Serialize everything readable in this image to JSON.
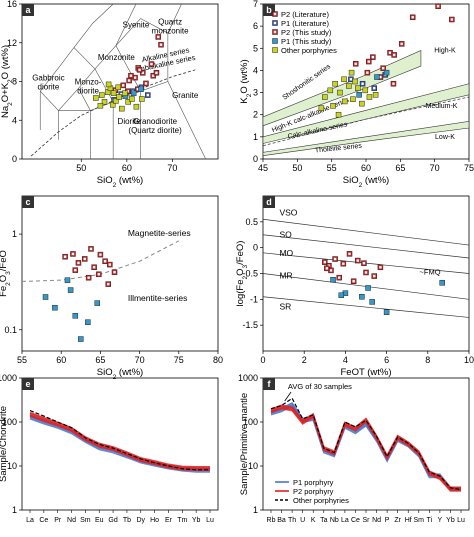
{
  "chart_data": [
    {
      "panel": "a",
      "type": "scatter",
      "xlabel": "SiO2 (wt%)",
      "ylabel": "Na2O+K2O (wt%)",
      "xlim": [
        37,
        80
      ],
      "ylim": [
        0,
        16
      ],
      "xticks": [
        "50",
        "60",
        "70"
      ],
      "yticks": [
        "0",
        "4",
        "8",
        "12",
        "16"
      ],
      "field_labels": [
        "Syenite",
        "Quartz monzonite",
        "Alkaline series",
        "Subalkaline series",
        "Monzonite",
        "Gabbroic diorite",
        "Monzo- diorite",
        "Granite",
        "Diorite",
        "Granodiorite (Quartz diorite)"
      ],
      "series": [
        {
          "name": "P2 (Literature)",
          "color": "#cc2222",
          "x": [
            57.5,
            59.2,
            60.5,
            61.8,
            62.4,
            63.5,
            64.2,
            65.8,
            66.9,
            67.5,
            62.5,
            60.2
          ],
          "y": [
            7.1,
            7.6,
            8.1,
            8.4,
            7.2,
            8.9,
            7.8,
            8.6,
            12.6,
            11.8,
            9.4,
            7.0
          ]
        },
        {
          "name": "P1 (Literature)",
          "color": "#3355bb",
          "x": [
            57.2,
            58.8,
            61.3,
            63.2,
            64.6
          ],
          "y": [
            6.1,
            6.7,
            7.0,
            7.4,
            6.6
          ]
        },
        {
          "name": "P2 (This study)",
          "color": "#cc2222",
          "x": [
            60.9,
            62.8,
            65.4,
            66.5
          ],
          "y": [
            8.6,
            9.2,
            9.8,
            8.9
          ]
        },
        {
          "name": "P1 (This study)",
          "color": "#3399cc",
          "x": [
            59.7,
            61.5,
            63.1
          ],
          "y": [
            6.5,
            6.8,
            7.2
          ]
        },
        {
          "name": "Other porphyries",
          "color": "#c8d420",
          "x": [
            53.2,
            54.5,
            55.8,
            56.4,
            56.9,
            57.6,
            58.3,
            58.9,
            59.6,
            60.3,
            55.1,
            57.1,
            58.1,
            61.1,
            56.0,
            54.2,
            62.1,
            63.3
          ],
          "y": [
            6.3,
            6.6,
            6.9,
            7.3,
            5.6,
            6.0,
            6.4,
            5.2,
            6.8,
            5.9,
            5.9,
            6.8,
            7.4,
            6.2,
            7.7,
            5.5,
            5.4,
            6.2
          ]
        }
      ]
    },
    {
      "panel": "b",
      "type": "scatter",
      "xlabel": "SiO2 (wt%)",
      "ylabel": "K2O (wt%)",
      "xlim": [
        45,
        75
      ],
      "ylim": [
        0,
        7
      ],
      "xticks": [
        "45",
        "50",
        "55",
        "60",
        "65",
        "70",
        "75"
      ],
      "yticks": [
        "0",
        "1",
        "2",
        "3",
        "4",
        "5",
        "6",
        "7"
      ],
      "series_labels": [
        "Shoshonitic series",
        "High-K calc-alkaline series",
        "Calc-alkaline series",
        "Tholeiite series",
        "High-K",
        "Medium-K",
        "Low-K"
      ],
      "legend": [
        "P2 (Literature)",
        "P1 (Literature)",
        "P2 (This study)",
        "P1 (This study)",
        "Other porphyries"
      ],
      "series": [
        {
          "name": "P2 (Literature)",
          "color": "#cc2222",
          "x": [
            58.5,
            60.2,
            61.0,
            62.1,
            63.5,
            64.0,
            65.2,
            66.8,
            70.5,
            72.5
          ],
          "y": [
            4.3,
            3.9,
            4.6,
            3.7,
            4.8,
            3.4,
            5.2,
            6.4,
            6.9,
            6.3
          ]
        },
        {
          "name": "P1 (Literature)",
          "color": "#3355bb",
          "x": [
            57.8,
            59.5,
            61.2,
            62.8
          ],
          "y": [
            3.6,
            3.4,
            3.2,
            3.8
          ]
        },
        {
          "name": "P2 (This study)",
          "color": "#cc2222",
          "x": [
            60.4,
            62.5,
            64.1
          ],
          "y": [
            4.4,
            4.1,
            4.7
          ]
        },
        {
          "name": "P1 (This study)",
          "color": "#3399cc",
          "x": [
            61.6,
            63.0,
            59.0
          ],
          "y": [
            3.7,
            3.9,
            2.9
          ]
        },
        {
          "name": "Other porphyries",
          "color": "#c8d420",
          "x": [
            54.0,
            54.8,
            55.5,
            56.2,
            56.9,
            57.5,
            58.1,
            58.8,
            59.4,
            55.2,
            56.8,
            57.9,
            59.9,
            60.5,
            53.5,
            56.0,
            58.4,
            61.4
          ],
          "y": [
            2.8,
            3.1,
            3.4,
            3.0,
            2.6,
            3.3,
            2.7,
            3.2,
            2.5,
            2.4,
            3.6,
            3.9,
            3.1,
            2.8,
            2.3,
            2.0,
            3.5,
            2.9
          ]
        }
      ]
    },
    {
      "panel": "c",
      "type": "scatter",
      "xlabel": "SiO2 (wt%)",
      "ylabel": "Fe2O3/FeO",
      "xlim": [
        55,
        80
      ],
      "ylim": [
        0.06,
        2.5
      ],
      "yscale": "log",
      "xticks": [
        "55",
        "60",
        "65",
        "70",
        "75",
        "80"
      ],
      "yticks": [
        "0.1",
        "1"
      ],
      "field_labels": [
        "Magnetite-series",
        "Illmentite-series"
      ],
      "series": [
        {
          "name": "P2 (This study)",
          "color": "#cc2222",
          "x": [
            60.5,
            61.5,
            62.2,
            63.0,
            63.8,
            64.2,
            65.0,
            65.6,
            66.2,
            66.8,
            61.8,
            63.5,
            64.8,
            66.0
          ],
          "y": [
            0.58,
            0.62,
            0.5,
            0.55,
            0.7,
            0.45,
            0.61,
            0.52,
            0.48,
            0.4,
            0.42,
            0.35,
            0.38,
            0.3
          ]
        },
        {
          "name": "P1 (This study)",
          "color": "#3399cc",
          "x": [
            58.0,
            59.2,
            60.8,
            61.8,
            62.5,
            63.4,
            64.6,
            61.2
          ],
          "y": [
            0.22,
            0.17,
            0.33,
            0.14,
            0.08,
            0.12,
            0.19,
            0.26
          ]
        }
      ],
      "boundary": {
        "x": [
          55,
          60,
          65,
          70,
          75
        ],
        "y": [
          0.32,
          0.33,
          0.38,
          0.52,
          0.85
        ]
      }
    },
    {
      "panel": "d",
      "type": "scatter",
      "xlabel": "FeOT (wt%)",
      "ylabel": "log(Fe2O3/FeO)",
      "xlim": [
        0,
        10
      ],
      "ylim": [
        -2.0,
        1.0
      ],
      "xticks": [
        "0",
        "2",
        "4",
        "6",
        "8",
        "10"
      ],
      "yticks": [
        "0.5",
        "0",
        "-0.5",
        "-1",
        "-1.5"
      ],
      "field_labels": [
        "VSO",
        "SO",
        "MO",
        "MR",
        "SR",
        "~FMQ"
      ],
      "series": [
        {
          "name": "P2 (This study)",
          "color": "#cc2222",
          "x": [
            3.0,
            3.2,
            3.5,
            3.9,
            4.2,
            4.6,
            5.0,
            5.4,
            5.7,
            3.3,
            3.7,
            4.4,
            4.9,
            3.1
          ],
          "y": [
            -0.28,
            -0.35,
            -0.22,
            -0.31,
            -0.12,
            -0.25,
            -0.48,
            -0.55,
            -0.38,
            -0.44,
            -0.58,
            -0.65,
            -0.3,
            -0.4
          ]
        },
        {
          "name": "P1 (This study)",
          "color": "#3399cc",
          "x": [
            3.4,
            4.0,
            4.8,
            5.3,
            6.0,
            8.7,
            3.8,
            5.1
          ],
          "y": [
            -0.62,
            -0.88,
            -0.95,
            -1.05,
            -1.25,
            -0.68,
            -0.92,
            -0.78
          ]
        }
      ]
    },
    {
      "panel": "e",
      "type": "line",
      "xlabel": "",
      "ylabel": "Sample/Chondrite",
      "yscale": "log",
      "ylim": [
        1,
        1000
      ],
      "categories": [
        "La",
        "Ce",
        "Pr",
        "Nd",
        "Sm",
        "Eu",
        "Gd",
        "Tb",
        "Dy",
        "Ho",
        "Er",
        "Tm",
        "Yb",
        "Lu"
      ],
      "yticks": [
        "1",
        "10",
        "100",
        "1000"
      ],
      "series": [
        {
          "name": "P1 porphyry",
          "color": "#4477cc",
          "values": [
            130,
            100,
            80,
            60,
            38,
            26,
            22,
            17,
            13,
            11,
            9.5,
            8.5,
            8,
            8
          ]
        },
        {
          "name": "P2 porphyry",
          "color": "#dd2222",
          "values": [
            150,
            115,
            90,
            68,
            42,
            30,
            25,
            19,
            14,
            12,
            10,
            9,
            8.8,
            8.8
          ]
        },
        {
          "name": "Other porphyries",
          "color": "#000000",
          "values": [
            200,
            150,
            110,
            82,
            48,
            34,
            28,
            21,
            16,
            13,
            11,
            9.5,
            9,
            9
          ]
        }
      ]
    },
    {
      "panel": "f",
      "type": "line",
      "xlabel": "",
      "ylabel": "Sample/Primitive mantle",
      "yscale": "log",
      "ylim": [
        1,
        1000
      ],
      "categories": [
        "Rb",
        "Ba",
        "Th",
        "U",
        "K",
        "Ta",
        "Nb",
        "La",
        "Ce",
        "Sr",
        "Nd",
        "P",
        "Zr",
        "Hf",
        "Sm",
        "Ti",
        "Y",
        "Yb",
        "Lu"
      ],
      "yticks": [
        "1",
        "10",
        "100",
        "1000"
      ],
      "annotation": "AVG of 30 samples",
      "legend": [
        "P1 porphyry",
        "P2 porphyry",
        "Other porphyries"
      ],
      "series": [
        {
          "name": "P1 porphyry",
          "color": "#4477cc",
          "values": [
            160,
            190,
            250,
            110,
            120,
            22,
            18,
            80,
            60,
            90,
            40,
            14,
            40,
            30,
            18,
            6,
            6,
            3,
            3
          ]
        },
        {
          "name": "P2 porphyry",
          "color": "#dd2222",
          "values": [
            180,
            220,
            200,
            100,
            140,
            25,
            20,
            90,
            70,
            110,
            45,
            16,
            45,
            32,
            20,
            7,
            5.5,
            3,
            3
          ]
        },
        {
          "name": "Other porphyries",
          "color": "#000000",
          "values": [
            220,
            260,
            380,
            130,
            160,
            28,
            22,
            110,
            85,
            120,
            52,
            18,
            50,
            36,
            22,
            8,
            6.5,
            3.5,
            3.2
          ]
        }
      ]
    }
  ]
}
